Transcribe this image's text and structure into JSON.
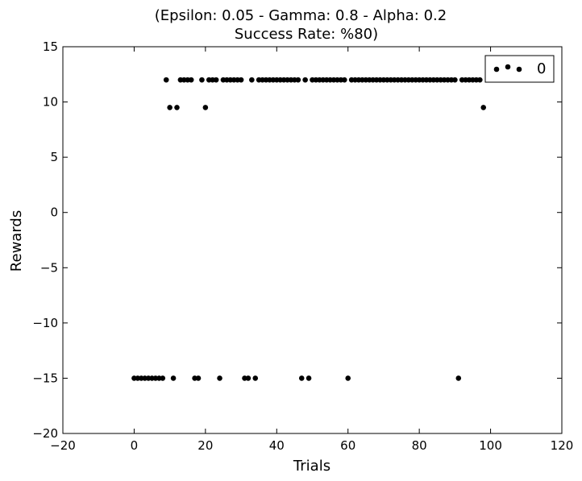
{
  "chart_data": {
    "type": "scatter",
    "title_line1": "(Epsilon: 0.05 - Gamma: 0.8 - Alpha: 0.2",
    "title_line2": "Success Rate: %80)",
    "xlabel": "Trials",
    "ylabel": "Rewards",
    "xlim": [
      -20,
      120
    ],
    "ylim": [
      -20,
      15
    ],
    "xticks": [
      -20,
      0,
      20,
      40,
      60,
      80,
      100,
      120
    ],
    "yticks": [
      -20,
      -15,
      -10,
      -5,
      0,
      5,
      10,
      15
    ],
    "xtick_labels": [
      "−20",
      "0",
      "20",
      "40",
      "60",
      "80",
      "100",
      "120"
    ],
    "ytick_labels": [
      "−20",
      "−15",
      "−10",
      "−5",
      "0",
      "5",
      "10",
      "15"
    ],
    "grid": false,
    "legend": {
      "placement": "top-right",
      "label": "0"
    },
    "marker_color": "#000000",
    "series": [
      {
        "name": "0",
        "x": [
          0,
          1,
          2,
          3,
          4,
          5,
          6,
          7,
          8,
          9,
          10,
          11,
          12,
          13,
          14,
          15,
          16,
          17,
          18,
          19,
          20,
          21,
          22,
          23,
          24,
          25,
          26,
          27,
          28,
          29,
          30,
          31,
          32,
          33,
          34,
          35,
          36,
          37,
          38,
          39,
          40,
          41,
          42,
          43,
          44,
          45,
          46,
          47,
          48,
          49,
          50,
          51,
          52,
          53,
          54,
          55,
          56,
          57,
          58,
          59,
          60,
          61,
          62,
          63,
          64,
          65,
          66,
          67,
          68,
          69,
          70,
          71,
          72,
          73,
          74,
          75,
          76,
          77,
          78,
          79,
          80,
          81,
          82,
          83,
          84,
          85,
          86,
          87,
          88,
          89,
          90,
          91,
          92,
          93,
          94,
          95,
          96,
          97,
          98
        ],
        "y": [
          -15,
          -15,
          -15,
          -15,
          -15,
          -15,
          -15,
          -15,
          -15,
          12,
          9.5,
          -15,
          9.5,
          12,
          12,
          12,
          12,
          -15,
          -15,
          12,
          9.5,
          12,
          12,
          12,
          -15,
          12,
          12,
          12,
          12,
          12,
          12,
          -15,
          -15,
          12,
          -15,
          12,
          12,
          12,
          12,
          12,
          12,
          12,
          12,
          12,
          12,
          12,
          12,
          -15,
          12,
          -15,
          12,
          12,
          12,
          12,
          12,
          12,
          12,
          12,
          12,
          12,
          -15,
          12,
          12,
          12,
          12,
          12,
          12,
          12,
          12,
          12,
          12,
          12,
          12,
          12,
          12,
          12,
          12,
          12,
          12,
          12,
          12,
          12,
          12,
          12,
          12,
          12,
          12,
          12,
          12,
          12,
          12,
          -15,
          12,
          12,
          12,
          12,
          12,
          12,
          9.5
        ]
      }
    ]
  }
}
